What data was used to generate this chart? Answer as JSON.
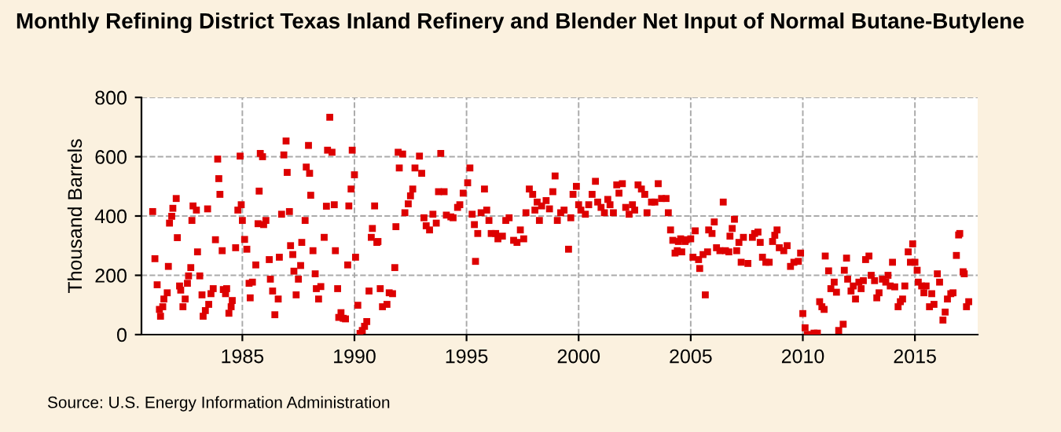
{
  "chart_data": {
    "type": "scatter",
    "title": "Monthly Refining District Texas Inland Refinery and Blender Net Input of Normal Butane-Butylene",
    "ylabel": "Thousand Barrels",
    "annotations": [
      "Source: U.S. Energy Information Administration"
    ],
    "xlim": [
      1980.5,
      2017.8
    ],
    "xticks": [
      1985,
      1990,
      1995,
      2000,
      2005,
      2010,
      2015
    ],
    "ylim": [
      0,
      800
    ],
    "yticks": [
      0,
      200,
      400,
      600,
      800
    ],
    "grid": true,
    "marker": "square",
    "series": [
      {
        "color": "#dd0000",
        "x": [
          1981.0,
          1981.1,
          1981.2,
          1981.3,
          1981.35,
          1981.45,
          1981.5,
          1981.65,
          1981.7,
          1981.75,
          1981.85,
          1981.9,
          1982.05,
          1982.1,
          1982.2,
          1982.25,
          1982.35,
          1982.45,
          1982.55,
          1982.6,
          1982.7,
          1982.75,
          1982.8,
          1982.95,
          1983.0,
          1983.1,
          1983.2,
          1983.25,
          1983.35,
          1983.45,
          1983.5,
          1983.6,
          1983.7,
          1983.8,
          1983.9,
          1983.95,
          1984.0,
          1984.1,
          1984.15,
          1984.25,
          1984.3,
          1984.4,
          1984.5,
          1984.55,
          1984.7,
          1984.8,
          1984.9,
          1984.95,
          1985.0,
          1985.1,
          1985.2,
          1985.3,
          1985.35,
          1985.45,
          1985.6,
          1985.7,
          1985.75,
          1985.8,
          1985.9,
          1985.95,
          1986.05,
          1986.2,
          1986.25,
          1986.35,
          1986.45,
          1986.6,
          1986.65,
          1986.75,
          1986.85,
          1986.95,
          1987.0,
          1987.1,
          1987.15,
          1987.25,
          1987.3,
          1987.4,
          1987.5,
          1987.6,
          1987.65,
          1987.8,
          1987.85,
          1987.95,
          1988.0,
          1988.05,
          1988.15,
          1988.25,
          1988.3,
          1988.4,
          1988.5,
          1988.65,
          1988.75,
          1988.8,
          1988.9,
          1989.0,
          1989.1,
          1989.15,
          1989.25,
          1989.3,
          1989.4,
          1989.5,
          1989.6,
          1989.7,
          1989.75,
          1989.85,
          1989.9,
          1990.0,
          1990.05,
          1990.15,
          1990.25,
          1990.35,
          1990.45,
          1990.55,
          1990.65,
          1990.75,
          1990.8,
          1990.9,
          1991.0,
          1991.05,
          1991.15,
          1991.25,
          1991.45,
          1991.55,
          1991.7,
          1991.8,
          1991.85,
          1991.95,
          1992.0,
          1992.15,
          1992.25,
          1992.4,
          1992.5,
          1992.6,
          1992.7,
          1992.9,
          1993.0,
          1993.1,
          1993.2,
          1993.35,
          1993.5,
          1993.65,
          1993.75,
          1993.85,
          1994.0,
          1994.1,
          1994.3,
          1994.4,
          1994.6,
          1994.7,
          1994.85,
          1995.05,
          1995.15,
          1995.25,
          1995.35,
          1995.4,
          1995.5,
          1995.65,
          1995.8,
          1995.9,
          1996.0,
          1996.1,
          1996.3,
          1996.4,
          1996.6,
          1996.75,
          1996.9,
          1997.1,
          1997.25,
          1997.4,
          1997.55,
          1997.65,
          1997.8,
          1997.95,
          1998.05,
          1998.15,
          1998.25,
          1998.35,
          1998.55,
          1998.7,
          1998.85,
          1998.95,
          1999.05,
          1999.2,
          1999.35,
          1999.55,
          1999.65,
          1999.75,
          1999.9,
          2000.0,
          2000.1,
          2000.3,
          2000.45,
          2000.6,
          2000.75,
          2000.85,
          2001.0,
          2001.15,
          2001.3,
          2001.4,
          2001.55,
          2001.7,
          2001.8,
          2001.95,
          2002.1,
          2002.25,
          2002.4,
          2002.5,
          2002.65,
          2002.8,
          2002.95,
          2003.05,
          2003.25,
          2003.4,
          2003.55,
          2003.7,
          2003.9,
          2004.0,
          2004.1,
          2004.2,
          2004.3,
          2004.4,
          2004.45,
          2004.55,
          2004.6,
          2004.75,
          2004.8,
          2005.0,
          2005.1,
          2005.2,
          2005.35,
          2005.4,
          2005.55,
          2005.65,
          2005.75,
          2005.8,
          2005.95,
          2006.05,
          2006.15,
          2006.3,
          2006.45,
          2006.55,
          2006.7,
          2006.75,
          2006.85,
          2006.95,
          2007.05,
          2007.15,
          2007.25,
          2007.35,
          2007.55,
          2007.75,
          2007.85,
          2008.0,
          2008.1,
          2008.2,
          2008.35,
          2008.5,
          2008.65,
          2008.75,
          2008.85,
          2008.95,
          2009.15,
          2009.3,
          2009.45,
          2009.6,
          2009.8,
          2009.9,
          2010.0,
          2010.1,
          2010.2,
          2010.35,
          2010.5,
          2010.65,
          2010.75,
          2010.85,
          2010.95,
          2011.0,
          2011.15,
          2011.25,
          2011.4,
          2011.5,
          2011.6,
          2011.8,
          2011.85,
          2011.95,
          2012.0,
          2012.15,
          2012.25,
          2012.35,
          2012.5,
          2012.6,
          2012.7,
          2012.8,
          2012.95,
          2013.05,
          2013.2,
          2013.3,
          2013.4,
          2013.55,
          2013.7,
          2013.8,
          2013.9,
          2014.0,
          2014.1,
          2014.25,
          2014.35,
          2014.45,
          2014.55,
          2014.7,
          2014.8,
          2014.9,
          2015.0,
          2015.1,
          2015.15,
          2015.3,
          2015.4,
          2015.5,
          2015.65,
          2015.75,
          2015.85,
          2016.0,
          2016.1,
          2016.25,
          2016.35,
          2016.45,
          2016.6,
          2016.7,
          2016.85,
          2016.95,
          2017.0,
          2017.15,
          2017.2,
          2017.3,
          2017.4
        ],
        "values": [
          415,
          256,
          168,
          85,
          62,
          94,
          120,
          141,
          230,
          376,
          399,
          426,
          459,
          327,
          164,
          150,
          94,
          120,
          173,
          198,
          226,
          385,
          434,
          420,
          279,
          198,
          134,
          62,
          81,
          424,
          102,
          138,
          155,
          320,
          592,
          526,
          473,
          283,
          152,
          138,
          155,
          72,
          94,
          115,
          293,
          420,
          602,
          438,
          385,
          321,
          288,
          173,
          124,
          177,
          235,
          374,
          484,
          611,
          600,
          371,
          385,
          253,
          187,
          147,
          67,
          120,
          261,
          406,
          606,
          653,
          547,
          415,
          300,
          270,
          214,
          134,
          187,
          233,
          311,
          385,
          565,
          638,
          544,
          470,
          283,
          205,
          155,
          120,
          162,
          328,
          433,
          622,
          733,
          615,
          438,
          283,
          155,
          58,
          74,
          55,
          53,
          235,
          434,
          491,
          622,
          539,
          261,
          99,
          4,
          14,
          28,
          44,
          147,
          328,
          358,
          434,
          311,
          314,
          155,
          94,
          102,
          141,
          138,
          226,
          364,
          615,
          562,
          609,
          411,
          441,
          468,
          491,
          562,
          602,
          544,
          394,
          367,
          353,
          406,
          376,
          482,
          611,
          482,
          403,
          397,
          394,
          429,
          438,
          477,
          512,
          562,
          406,
          371,
          247,
          341,
          411,
          491,
          420,
          385,
          341,
          341,
          323,
          332,
          385,
          394,
          318,
          311,
          353,
          323,
          411,
          491,
          473,
          420,
          447,
          385,
          434,
          452,
          424,
          482,
          535,
          385,
          411,
          420,
          288,
          394,
          473,
          500,
          438,
          420,
          406,
          438,
          473,
          517,
          447,
          429,
          411,
          456,
          438,
          411,
          505,
          477,
          509,
          429,
          406,
          438,
          420,
          505,
          491,
          473,
          411,
          447,
          447,
          509,
          459,
          459,
          411,
          353,
          318,
          275,
          283,
          314,
          323,
          279,
          314,
          320,
          323,
          261,
          350,
          253,
          223,
          270,
          134,
          279,
          353,
          341,
          380,
          293,
          283,
          447,
          283,
          279,
          332,
          358,
          389,
          283,
          311,
          244,
          328,
          240,
          328,
          341,
          346,
          311,
          261,
          244,
          244,
          314,
          335,
          353,
          293,
          283,
          300,
          230,
          244,
          247,
          275,
          71,
          23,
          0,
          0,
          5,
          5,
          111,
          94,
          85,
          265,
          215,
          155,
          177,
          143,
          14,
          35,
          217,
          258,
          187,
          147,
          164,
          120,
          177,
          155,
          182,
          253,
          265,
          200,
          182,
          124,
          141,
          187,
          177,
          200,
          164,
          244,
          161,
          94,
          111,
          120,
          164,
          279,
          244,
          306,
          244,
          217,
          177,
          164,
          141,
          164,
          94,
          138,
          102,
          205,
          177,
          49,
          76,
          120,
          138,
          141,
          267,
          336,
          341,
          212,
          205,
          94,
          111
        ]
      }
    ]
  }
}
